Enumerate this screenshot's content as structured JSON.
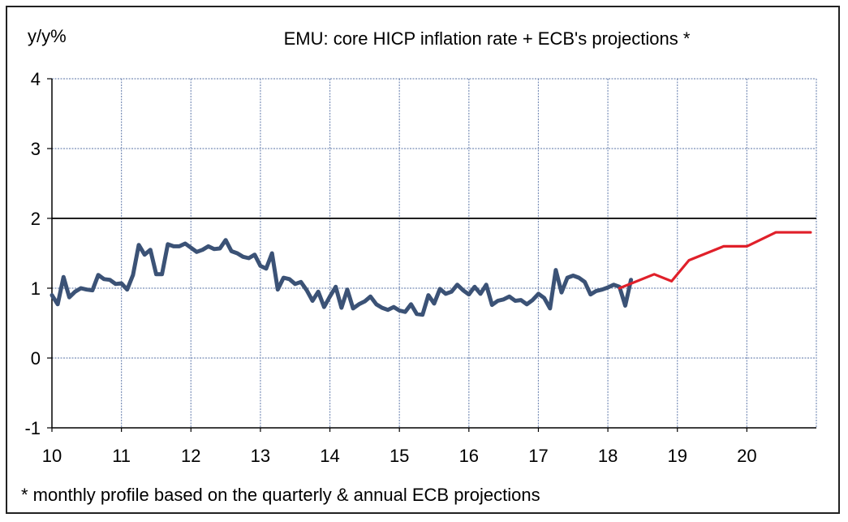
{
  "chart_data": {
    "type": "line",
    "title": "EMU: core HICP inflation rate + ECB's projections *",
    "ylabel": "y/y%",
    "xlabel": "",
    "footnote": "* monthly profile based on the quarterly & annual ECB projections",
    "xlim": [
      10,
      21
    ],
    "ylim": [
      -1,
      4
    ],
    "x_ticks": [
      "10",
      "11",
      "12",
      "13",
      "14",
      "15",
      "16",
      "17",
      "18",
      "19",
      "20"
    ],
    "y_ticks": [
      "-1",
      "0",
      "1",
      "2",
      "3",
      "4"
    ],
    "reference_line": 2,
    "grid": true,
    "colors": {
      "actual": "#3b5276",
      "projection": "#e0202a",
      "grid": "#7a8fb8",
      "axis": "#000000"
    },
    "series": [
      {
        "key": "actual",
        "x": [
          10.0,
          10.083,
          10.167,
          10.25,
          10.333,
          10.417,
          10.5,
          10.583,
          10.667,
          10.75,
          10.833,
          10.917,
          11.0,
          11.083,
          11.167,
          11.25,
          11.333,
          11.417,
          11.5,
          11.583,
          11.667,
          11.75,
          11.833,
          11.917,
          12.0,
          12.083,
          12.167,
          12.25,
          12.333,
          12.417,
          12.5,
          12.583,
          12.667,
          12.75,
          12.833,
          12.917,
          13.0,
          13.083,
          13.167,
          13.25,
          13.333,
          13.417,
          13.5,
          13.583,
          13.667,
          13.75,
          13.833,
          13.917,
          14.0,
          14.083,
          14.167,
          14.25,
          14.333,
          14.417,
          14.5,
          14.583,
          14.667,
          14.75,
          14.833,
          14.917,
          15.0,
          15.083,
          15.167,
          15.25,
          15.333,
          15.417,
          15.5,
          15.583,
          15.667,
          15.75,
          15.833,
          15.917,
          16.0,
          16.083,
          16.167,
          16.25,
          16.333,
          16.417,
          16.5,
          16.583,
          16.667,
          16.75,
          16.833,
          16.917,
          17.0,
          17.083,
          17.167,
          17.25,
          17.333,
          17.417,
          17.5,
          17.583,
          17.667,
          17.75,
          17.833,
          17.917,
          18.0,
          18.083,
          18.167,
          18.25,
          18.333
        ],
        "y": [
          0.9,
          0.77,
          1.16,
          0.87,
          0.95,
          1.0,
          0.98,
          0.97,
          1.19,
          1.13,
          1.12,
          1.06,
          1.07,
          0.98,
          1.19,
          1.62,
          1.48,
          1.55,
          1.2,
          1.2,
          1.63,
          1.6,
          1.6,
          1.64,
          1.58,
          1.52,
          1.55,
          1.6,
          1.56,
          1.57,
          1.69,
          1.53,
          1.5,
          1.45,
          1.43,
          1.48,
          1.32,
          1.28,
          1.5,
          0.98,
          1.15,
          1.13,
          1.06,
          1.09,
          0.97,
          0.82,
          0.95,
          0.73,
          0.88,
          1.02,
          0.72,
          0.98,
          0.71,
          0.77,
          0.81,
          0.88,
          0.77,
          0.72,
          0.69,
          0.73,
          0.68,
          0.66,
          0.77,
          0.63,
          0.62,
          0.9,
          0.78,
          0.99,
          0.92,
          0.95,
          1.05,
          0.97,
          0.91,
          1.02,
          0.92,
          1.05,
          0.76,
          0.82,
          0.84,
          0.88,
          0.82,
          0.83,
          0.77,
          0.83,
          0.92,
          0.86,
          0.71,
          1.26,
          0.94,
          1.15,
          1.18,
          1.15,
          1.09,
          0.91,
          0.96,
          0.98,
          1.01,
          1.05,
          1.02,
          0.75,
          1.12
        ]
      },
      {
        "key": "projection",
        "x": [
          18.167,
          18.667,
          18.917,
          19.167,
          19.667,
          20.0,
          20.417,
          20.917
        ],
        "y": [
          1.0,
          1.2,
          1.1,
          1.4,
          1.6,
          1.6,
          1.8,
          1.8
        ]
      }
    ]
  }
}
